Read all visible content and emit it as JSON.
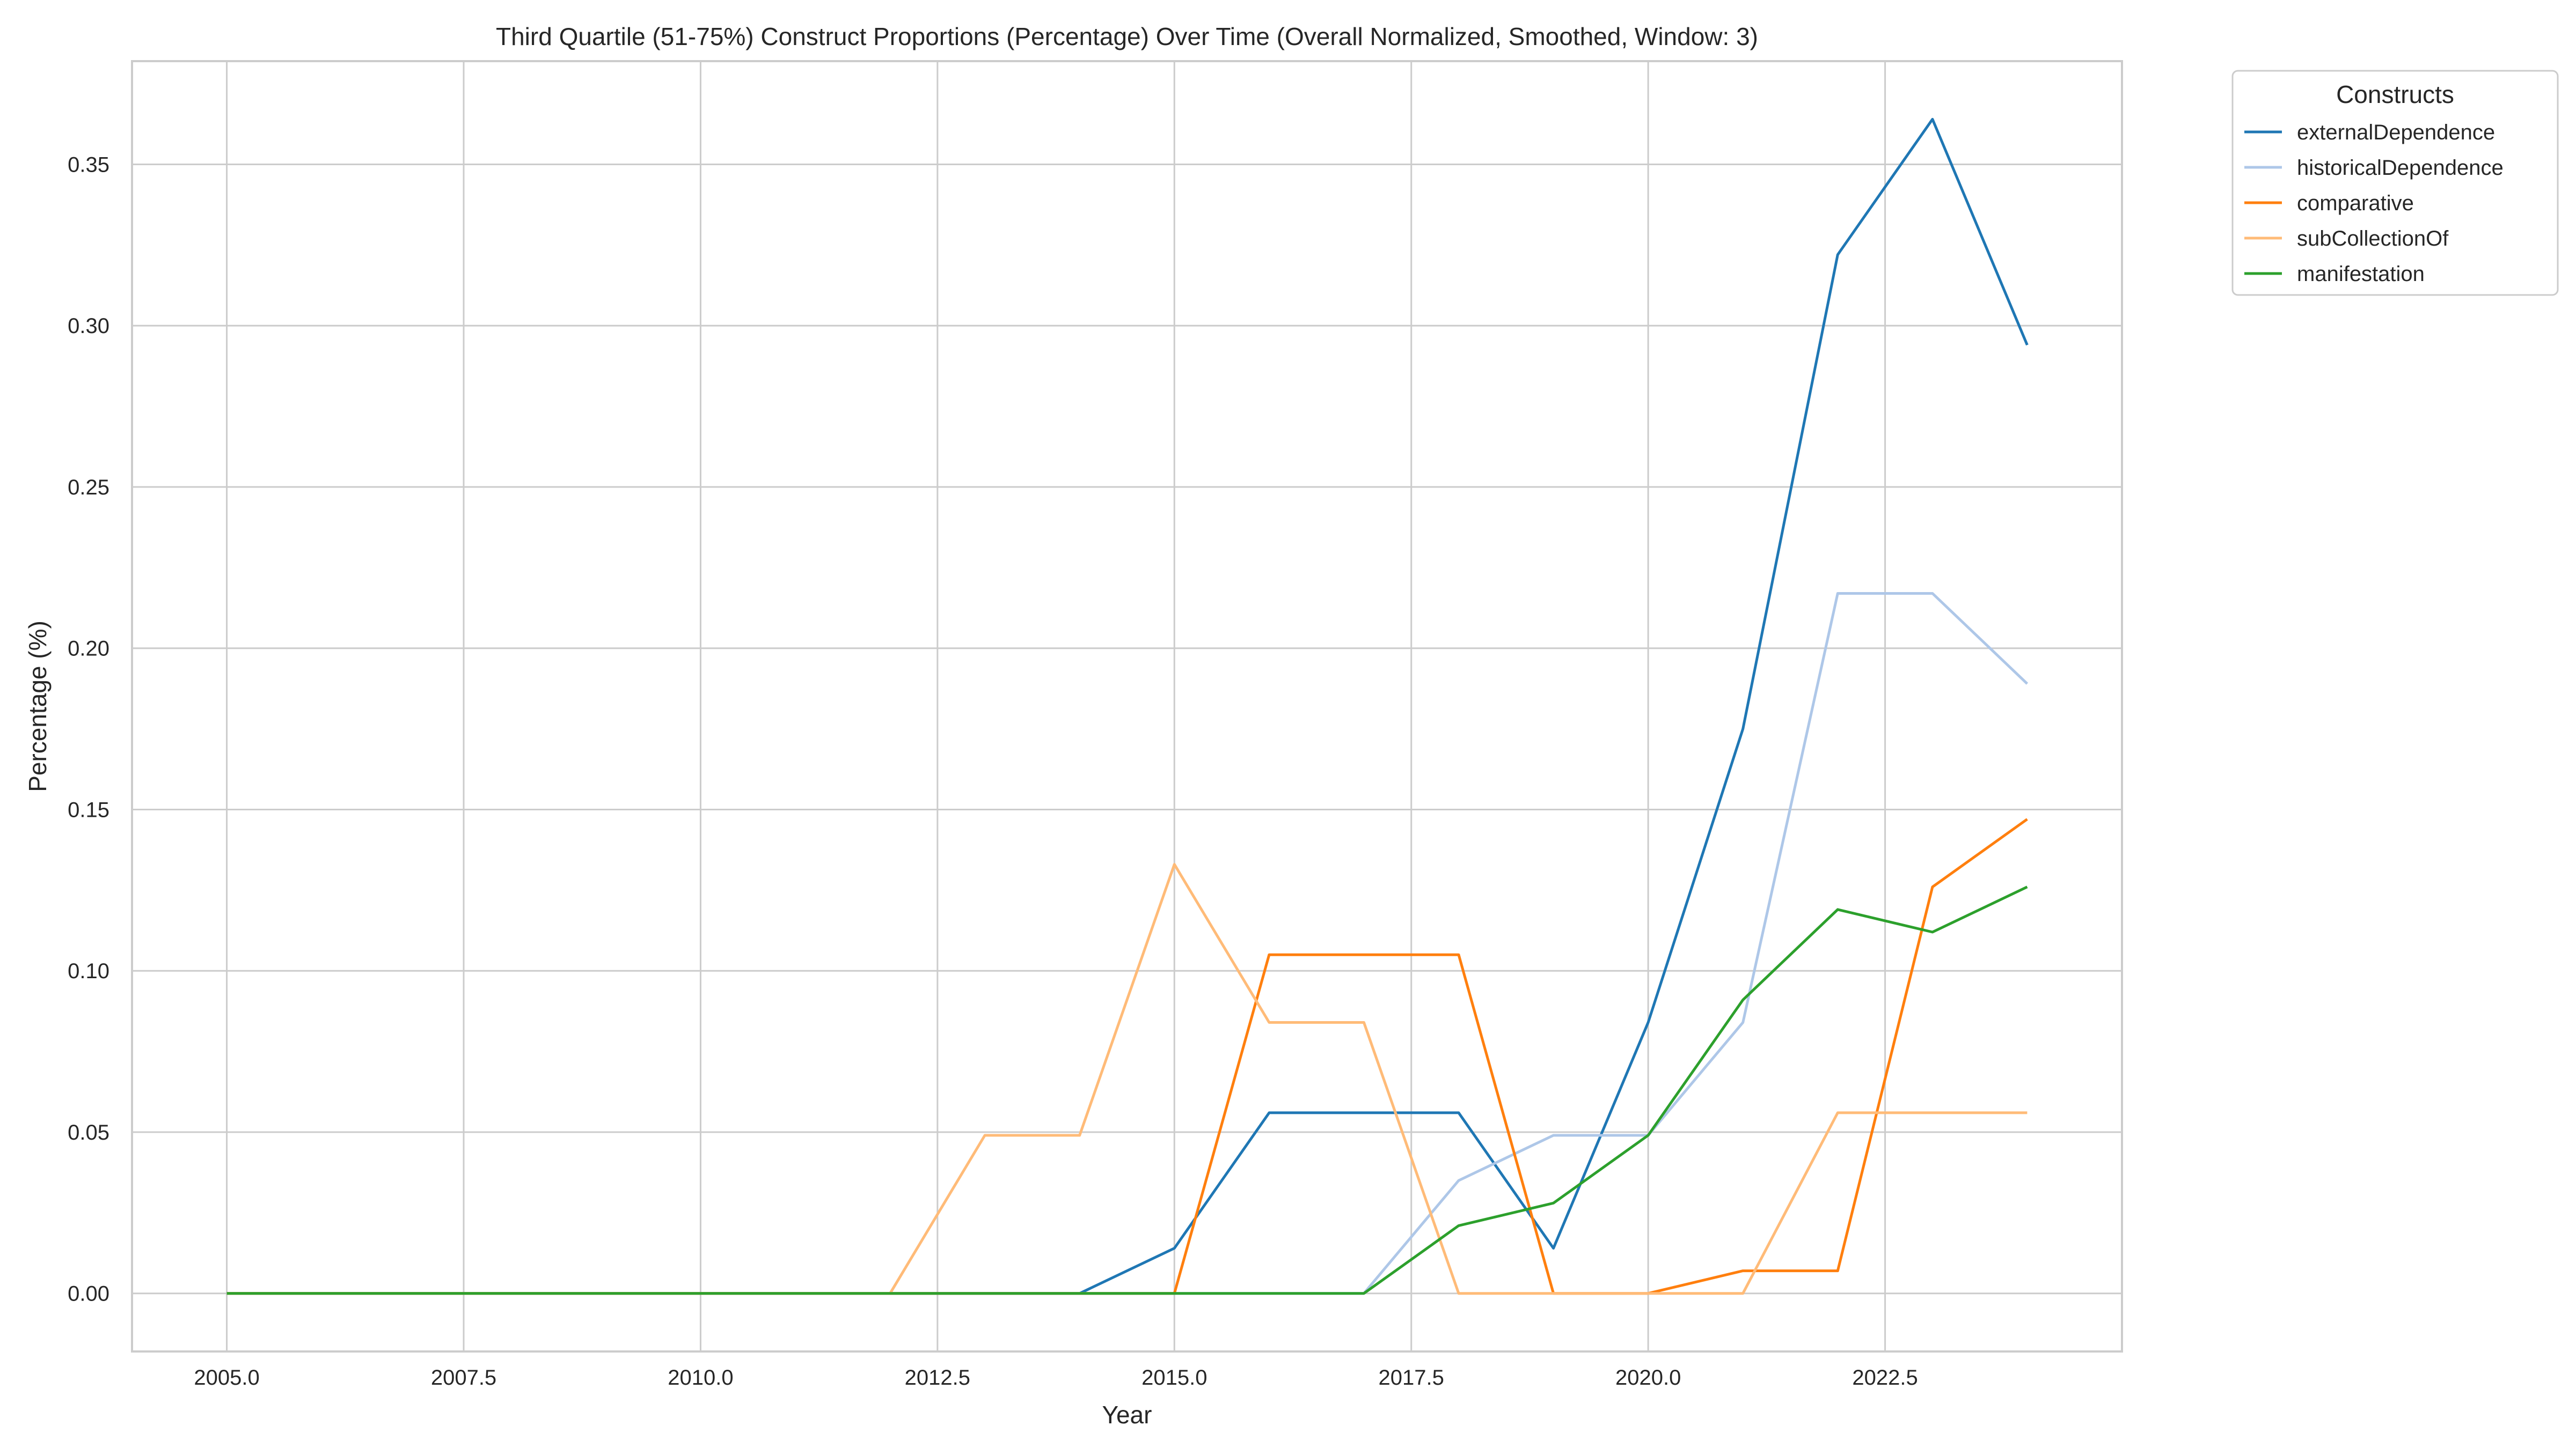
{
  "chart_data": {
    "type": "line",
    "title": "Third Quartile (51-75%) Construct Proportions (Percentage) Over Time (Overall Normalized, Smoothed, Window: 3)",
    "xlabel": "Year",
    "ylabel": "Percentage (%)",
    "xlim": [
      2004.0,
      2025.0
    ],
    "ylim": [
      -0.018,
      0.382
    ],
    "x_ticks": [
      2005.0,
      2007.5,
      2010.0,
      2012.5,
      2015.0,
      2017.5,
      2020.0,
      2022.5
    ],
    "x_tick_labels": [
      "2005.0",
      "2007.5",
      "2010.0",
      "2012.5",
      "2015.0",
      "2017.5",
      "2020.0",
      "2022.5"
    ],
    "y_ticks": [
      0.0,
      0.05,
      0.1,
      0.15,
      0.2,
      0.25,
      0.3,
      0.35
    ],
    "y_tick_labels": [
      "0.00",
      "0.05",
      "0.10",
      "0.15",
      "0.20",
      "0.25",
      "0.30",
      "0.35"
    ],
    "grid": true,
    "legend": {
      "title": "Constructs",
      "placement": "outside-top-right"
    },
    "x": [
      2005,
      2006,
      2007,
      2008,
      2009,
      2010,
      2011,
      2012,
      2013,
      2014,
      2015,
      2016,
      2017,
      2018,
      2019,
      2020,
      2021,
      2022,
      2023,
      2024
    ],
    "series": [
      {
        "name": "externalDependence",
        "color": "#1f77b4",
        "values": [
          0,
          0,
          0,
          0,
          0,
          0,
          0,
          0,
          0,
          0,
          0.014,
          0.056,
          0.056,
          0.056,
          0.014,
          0.084,
          0.175,
          0.322,
          0.364,
          0.294
        ]
      },
      {
        "name": "historicalDependence",
        "color": "#aec7e8",
        "values": [
          0,
          0,
          0,
          0,
          0,
          0,
          0,
          0,
          0,
          0,
          0,
          0,
          0,
          0.035,
          0.049,
          0.049,
          0.084,
          0.217,
          0.217,
          0.189
        ]
      },
      {
        "name": "comparative",
        "color": "#ff7f0e",
        "values": [
          0,
          0,
          0,
          0,
          0,
          0,
          0,
          0,
          0,
          0,
          0,
          0.105,
          0.105,
          0.105,
          0,
          0,
          0.007,
          0.007,
          0.126,
          0.147
        ]
      },
      {
        "name": "subCollectionOf",
        "color": "#ffbb78",
        "values": [
          0,
          0,
          0,
          0,
          0,
          0,
          0,
          0,
          0.049,
          0.049,
          0.133,
          0.084,
          0.084,
          0,
          0,
          0,
          0,
          0.056,
          0.056,
          0.056
        ]
      },
      {
        "name": "manifestation",
        "color": "#2ca02c",
        "values": [
          0,
          0,
          0,
          0,
          0,
          0,
          0,
          0,
          0,
          0,
          0,
          0,
          0,
          0.021,
          0.028,
          0.049,
          0.091,
          0.119,
          0.112,
          0.126
        ]
      }
    ]
  }
}
